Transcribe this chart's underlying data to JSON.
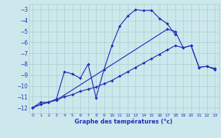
{
  "xlabel": "Graphe des températures (°c)",
  "xlim": [
    -0.5,
    23.5
  ],
  "ylim": [
    -12.5,
    -2.5
  ],
  "yticks": [
    -12,
    -11,
    -10,
    -9,
    -8,
    -7,
    -6,
    -5,
    -4,
    -3
  ],
  "xticks": [
    0,
    1,
    2,
    3,
    4,
    5,
    6,
    7,
    8,
    9,
    10,
    11,
    12,
    13,
    14,
    15,
    16,
    17,
    18,
    19,
    20,
    21,
    22,
    23
  ],
  "background_color": "#cce8ec",
  "grid_color": "#aacccc",
  "line_color": "#2030bb",
  "series1_x": [
    0,
    1,
    2,
    3,
    4,
    5,
    6,
    7,
    8,
    9,
    10,
    11,
    12,
    13,
    14,
    15,
    16,
    17,
    18
  ],
  "series1_y": [
    -12.0,
    -11.5,
    -11.5,
    -11.2,
    -8.7,
    -8.9,
    -9.3,
    -8.0,
    -11.1,
    -8.5,
    -6.3,
    -4.5,
    -3.6,
    -3.0,
    -3.1,
    -3.05,
    -3.8,
    -4.3,
    -5.3
  ],
  "series2_x": [
    0,
    1,
    2,
    3,
    4,
    5,
    6,
    7,
    8,
    9,
    10,
    11,
    12,
    13,
    14,
    15,
    16,
    17,
    18,
    19,
    20,
    21,
    22,
    23
  ],
  "series2_y": [
    -12.0,
    -11.7,
    -11.5,
    -11.3,
    -11.0,
    -10.8,
    -10.5,
    -10.3,
    -10.1,
    -9.8,
    -9.5,
    -9.1,
    -8.7,
    -8.3,
    -7.9,
    -7.5,
    -7.1,
    -6.7,
    -6.3,
    -6.5,
    -6.3,
    -8.3,
    -8.2,
    -8.5
  ],
  "series3_x": [
    0,
    1,
    2,
    3,
    17,
    18,
    19,
    20,
    21,
    22,
    23
  ],
  "series3_y": [
    -12.0,
    -11.7,
    -11.5,
    -11.3,
    -4.8,
    -5.0,
    -6.5,
    -6.3,
    -8.3,
    -8.2,
    -8.4
  ]
}
